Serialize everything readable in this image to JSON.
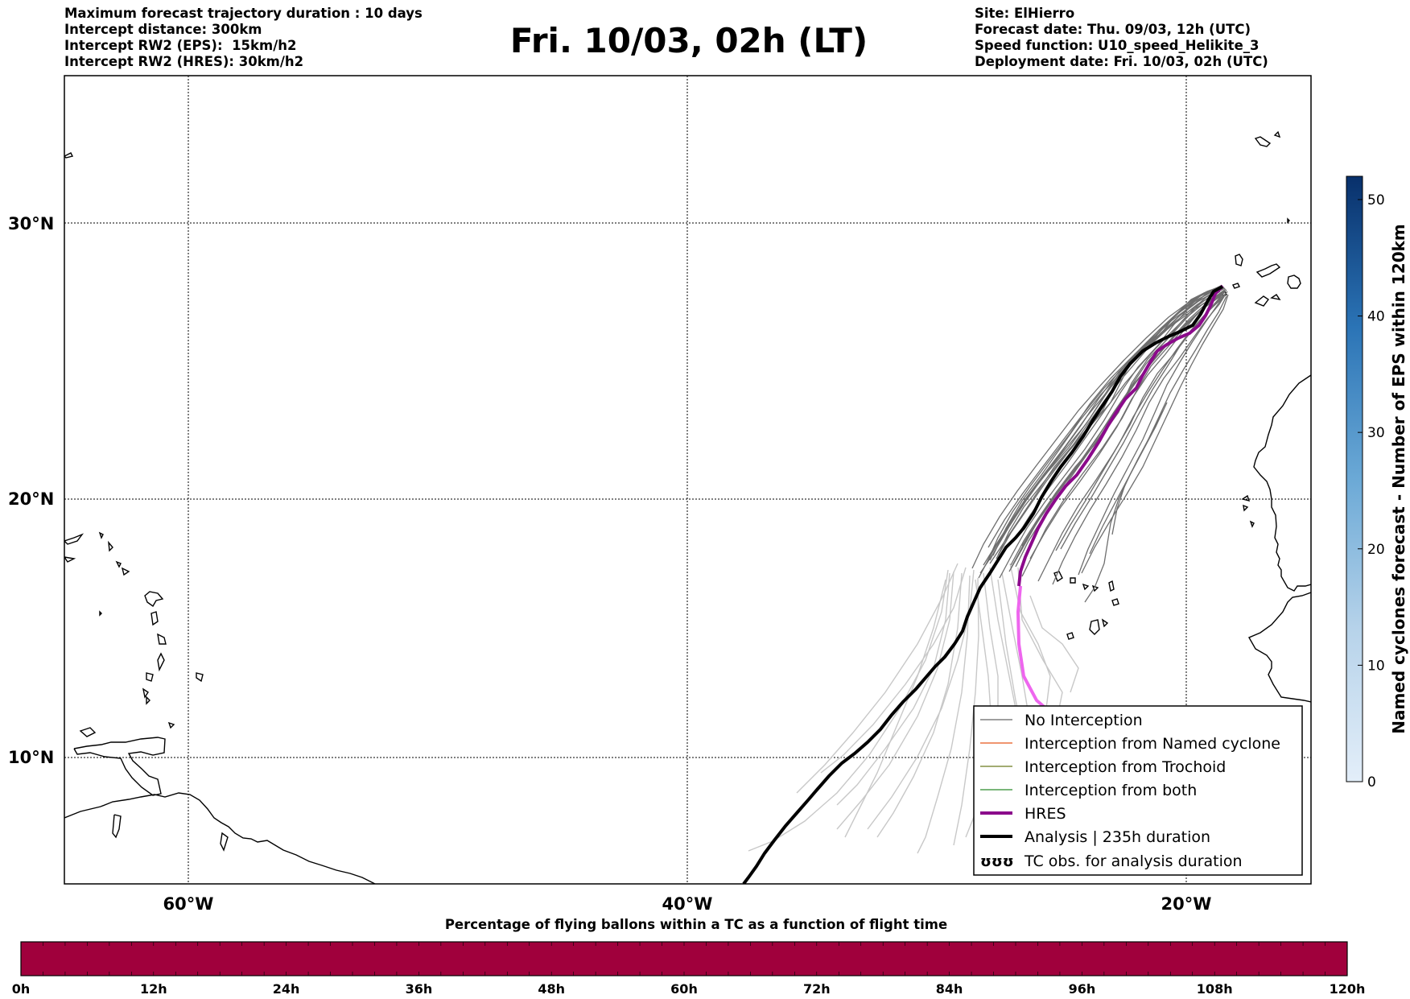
{
  "header": {
    "left_lines": [
      "Maximum forecast trajectory duration : 10 days",
      "Intercept distance: 300km",
      "Intercept RW2 (EPS):  15km/h2",
      "Intercept RW2 (HRES): 30km/h2"
    ],
    "title": "Fri. 10/03, 02h (LT)",
    "right_lines": [
      "Site: ElHierro",
      "Forecast date: Thu. 09/03, 12h (UTC)",
      "Speed function: U10_speed_Helikite_3",
      "Deployment date: Fri. 10/03, 02h (UTC)"
    ]
  },
  "map": {
    "lat_labels": [
      "30°N",
      "20°N",
      "10°N"
    ],
    "lon_labels": [
      "60°W",
      "40°W",
      "20°W"
    ],
    "colors": {
      "no_interception": "#666666",
      "eps_faded": "#c8c8c8",
      "named_cyclone": "#e8561b",
      "trochoid": "#6b7a1f",
      "both": "#2a8a2a",
      "hres": "#8b0a8b",
      "hres_faded": "#ee66ee",
      "analysis": "#000000"
    }
  },
  "legend": {
    "items": [
      {
        "label": "No Interception",
        "color": "#666666",
        "style": "thin"
      },
      {
        "label": "Interception from Named cyclone",
        "color": "#e8561b",
        "style": "thin"
      },
      {
        "label": "Interception from Trochoid",
        "color": "#6b7a1f",
        "style": "thin"
      },
      {
        "label": "Interception from both",
        "color": "#2a8a2a",
        "style": "thin"
      },
      {
        "label": "HRES",
        "color": "#8b0a8b",
        "style": "thick"
      },
      {
        "label": "Analysis | 235h duration",
        "color": "#000000",
        "style": "thick"
      },
      {
        "label": "TC obs. for analysis duration",
        "color": "#000000",
        "style": "symbol",
        "symbol": "ʊʊʊ"
      }
    ]
  },
  "colorbar": {
    "label": "Named cyclones forecast - Number of EPS within 120km",
    "ticks": [
      "0",
      "10",
      "20",
      "30",
      "40",
      "50"
    ],
    "min": 0,
    "max": 52,
    "color_low": "#e3eef9",
    "color_high": "#08306b"
  },
  "timebar": {
    "title": "Percentage of flying ballons within a TC as a function of flight time",
    "ticks": [
      "0h",
      "12h",
      "24h",
      "36h",
      "48h",
      "60h",
      "72h",
      "84h",
      "96h",
      "108h",
      "120h"
    ],
    "fill_color": "#a0003c"
  }
}
